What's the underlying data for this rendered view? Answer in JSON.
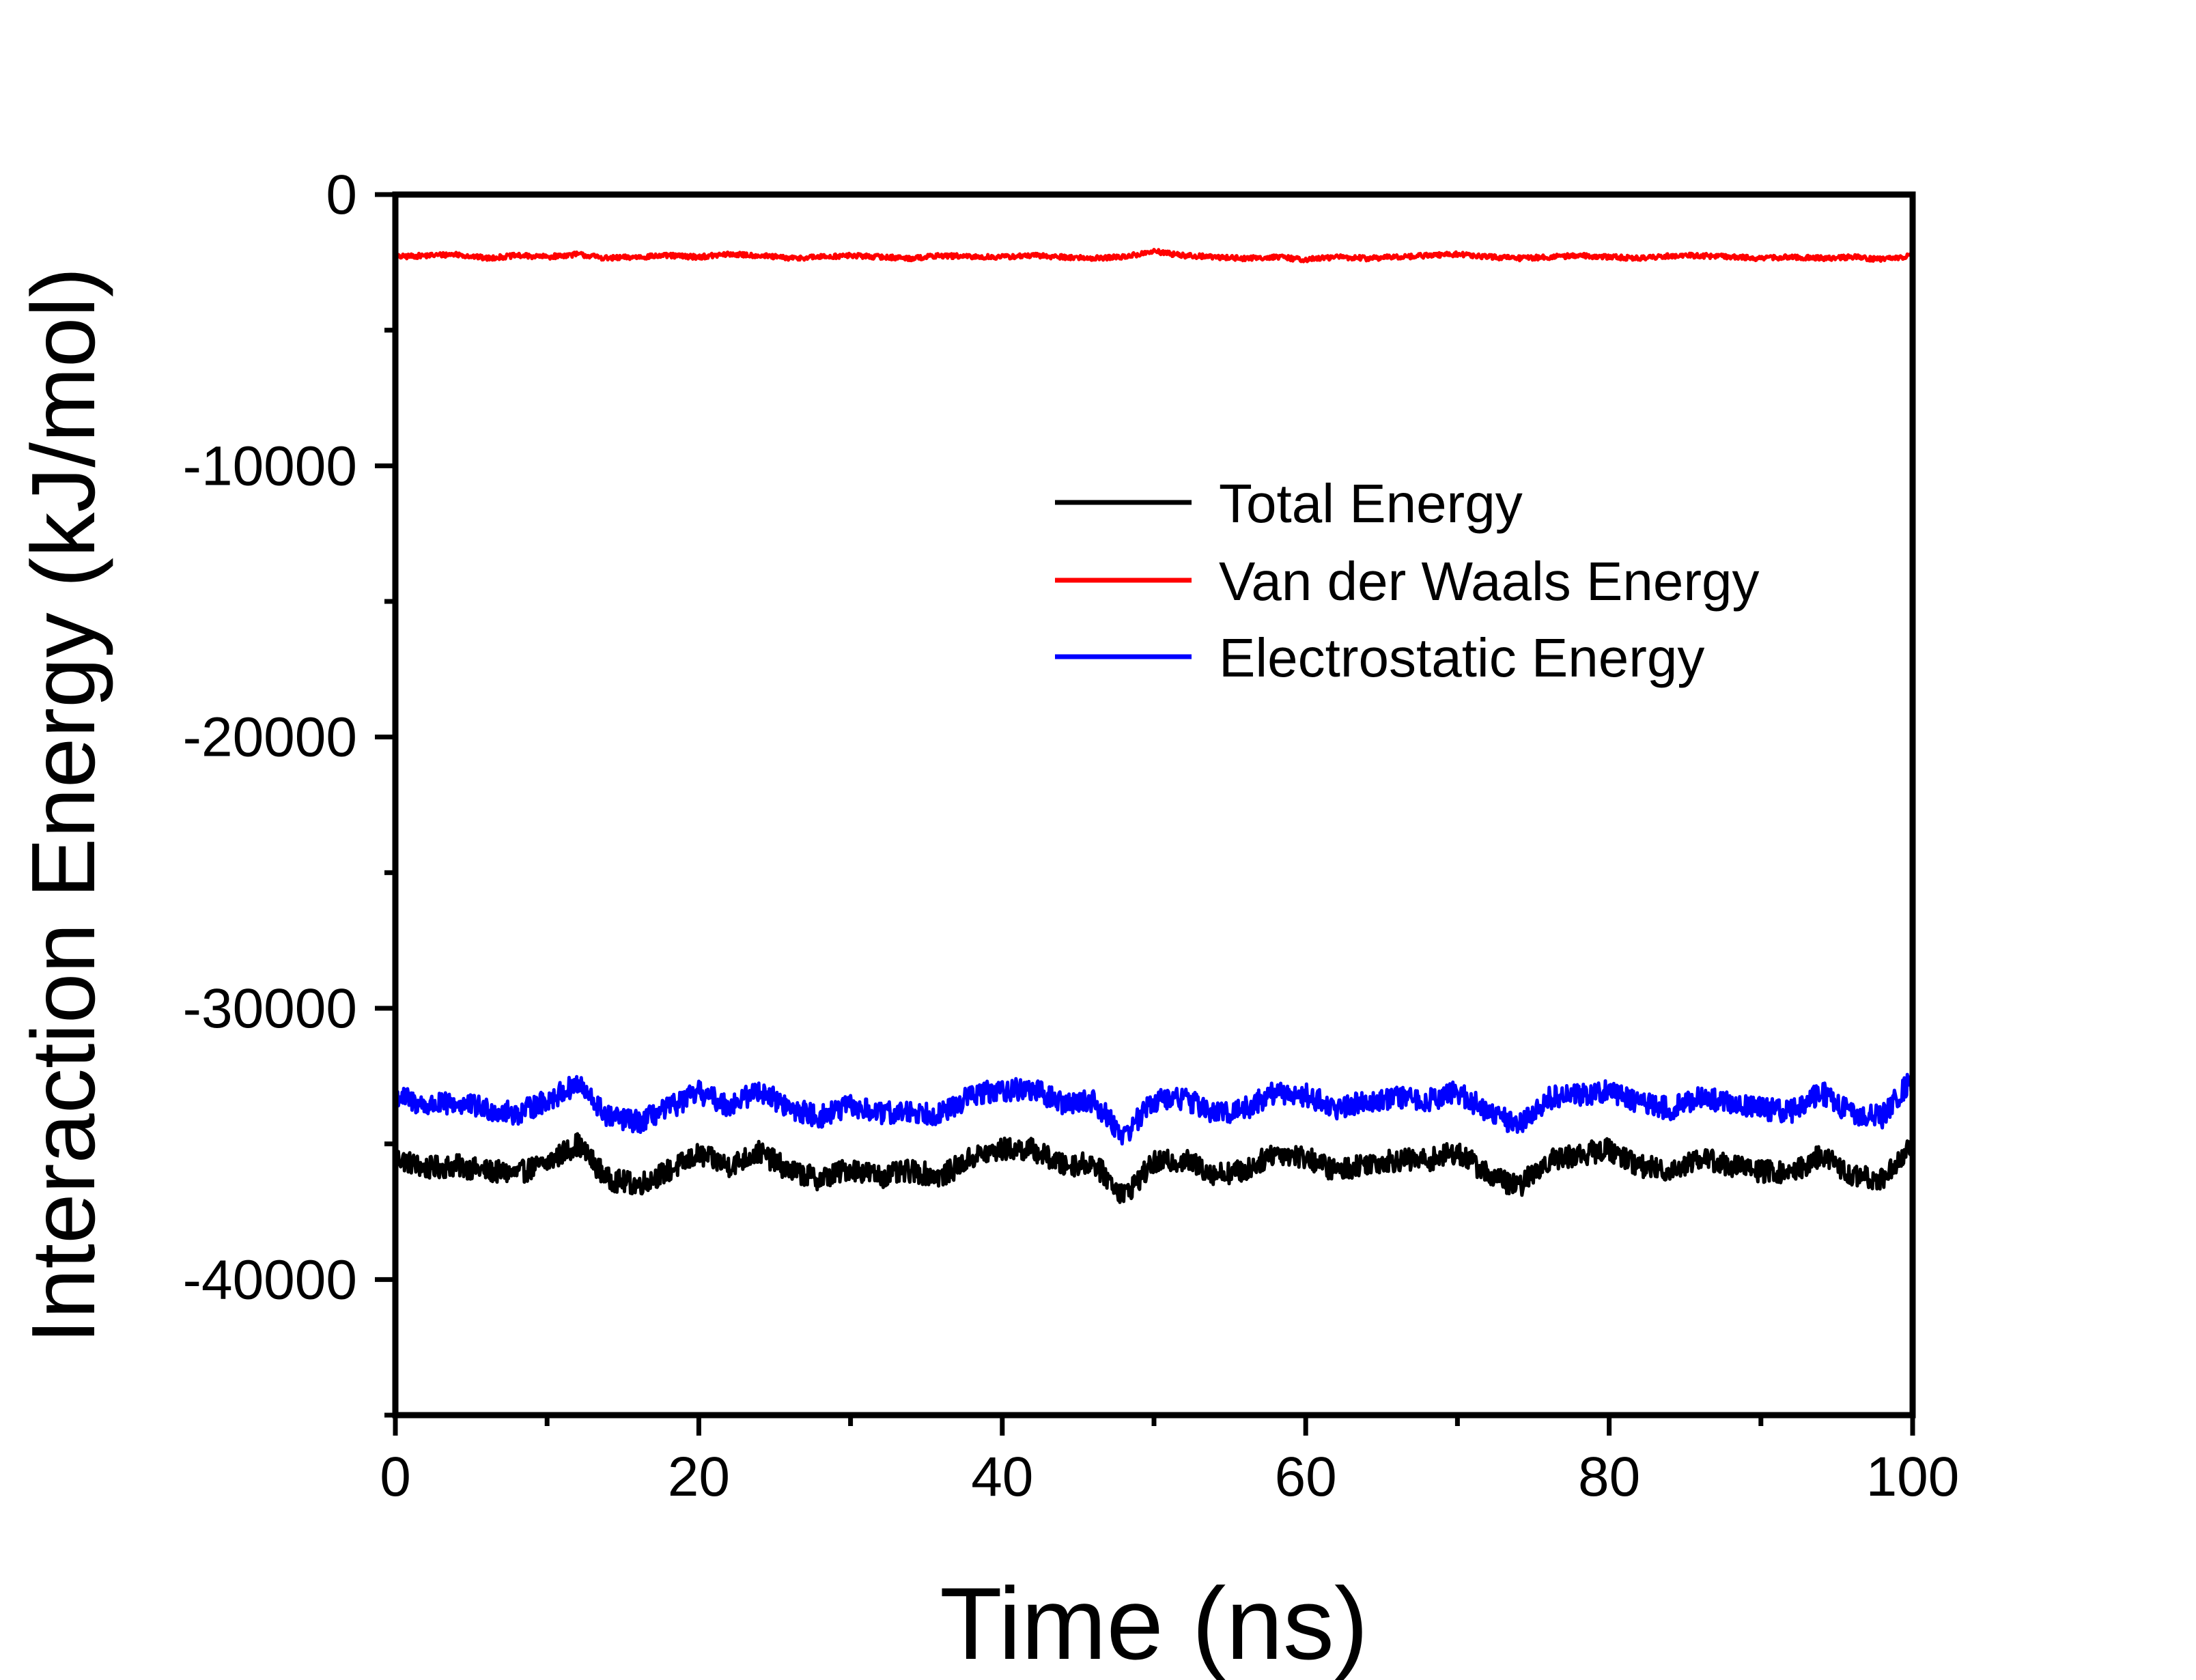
{
  "chart_data": {
    "type": "line",
    "title": "",
    "xlabel": "Time (ns)",
    "ylabel": "Interaction Energy (kJ/mol)",
    "xlim": [
      0,
      100
    ],
    "ylim": [
      -45000,
      0
    ],
    "xticks": [
      0,
      20,
      40,
      60,
      80,
      100
    ],
    "xtick_labels": [
      "0",
      "20",
      "40",
      "60",
      "80",
      "100"
    ],
    "xminor_step": 10,
    "yticks": [
      0,
      -10000,
      -20000,
      -30000,
      -40000
    ],
    "ytick_labels": [
      "0",
      "-10000",
      "-20000",
      "-30000",
      "-40000"
    ],
    "yminor_step": 5000,
    "grid": false,
    "legend_position": "upper-right",
    "series": [
      {
        "name": "Total Energy",
        "color": "#000000",
        "x": [
          0,
          2,
          4,
          6,
          8,
          10,
          12,
          14,
          16,
          18,
          20,
          22,
          24,
          26,
          28,
          30,
          32,
          34,
          36,
          38,
          40,
          42,
          44,
          46,
          48,
          50,
          52,
          54,
          56,
          58,
          60,
          62,
          64,
          66,
          68,
          70,
          72,
          74,
          76,
          78,
          80,
          82,
          84,
          86,
          88,
          90,
          92,
          94,
          96,
          98,
          100
        ],
        "values": [
          -35500,
          -35900,
          -35800,
          -36000,
          -36100,
          -35700,
          -35000,
          -36300,
          -36500,
          -36000,
          -35400,
          -35800,
          -35300,
          -36000,
          -36300,
          -35900,
          -36200,
          -36000,
          -36200,
          -35500,
          -35200,
          -35200,
          -35800,
          -35700,
          -36900,
          -35700,
          -35600,
          -36100,
          -36000,
          -35300,
          -35500,
          -36000,
          -35700,
          -35600,
          -35600,
          -35300,
          -36100,
          -36600,
          -35600,
          -35400,
          -35200,
          -35800,
          -36000,
          -35500,
          -35800,
          -36000,
          -36100,
          -35400,
          -36200,
          -36300,
          -35000
        ]
      },
      {
        "name": "Van der Waals Energy",
        "color": "#ff0000",
        "x": [
          0,
          2,
          4,
          6,
          8,
          10,
          12,
          14,
          16,
          18,
          20,
          22,
          24,
          26,
          28,
          30,
          32,
          34,
          36,
          38,
          40,
          42,
          44,
          46,
          48,
          50,
          52,
          54,
          56,
          58,
          60,
          62,
          64,
          66,
          68,
          70,
          72,
          74,
          76,
          78,
          80,
          82,
          84,
          86,
          88,
          90,
          92,
          94,
          96,
          98,
          100
        ],
        "values": [
          -2300,
          -2250,
          -2200,
          -2350,
          -2250,
          -2300,
          -2200,
          -2350,
          -2300,
          -2250,
          -2300,
          -2200,
          -2250,
          -2350,
          -2300,
          -2250,
          -2300,
          -2350,
          -2250,
          -2300,
          -2300,
          -2250,
          -2300,
          -2350,
          -2300,
          -2100,
          -2250,
          -2300,
          -2350,
          -2300,
          -2400,
          -2300,
          -2350,
          -2300,
          -2250,
          -2200,
          -2300,
          -2350,
          -2300,
          -2250,
          -2300,
          -2350,
          -2250,
          -2250,
          -2300,
          -2350,
          -2300,
          -2350,
          -2300,
          -2400,
          -2250
        ]
      },
      {
        "name": "Electrostatic Energy",
        "color": "#0000ff",
        "x": [
          0,
          2,
          4,
          6,
          8,
          10,
          12,
          14,
          16,
          18,
          20,
          22,
          24,
          26,
          28,
          30,
          32,
          34,
          36,
          38,
          40,
          42,
          44,
          46,
          48,
          50,
          52,
          54,
          56,
          58,
          60,
          62,
          64,
          66,
          68,
          70,
          72,
          74,
          76,
          78,
          80,
          82,
          84,
          86,
          88,
          90,
          92,
          94,
          96,
          98,
          100
        ],
        "values": [
          -33200,
          -33600,
          -33500,
          -33700,
          -33900,
          -33400,
          -32800,
          -34000,
          -34200,
          -33700,
          -33100,
          -33600,
          -33000,
          -33700,
          -34000,
          -33600,
          -33900,
          -33800,
          -33900,
          -33200,
          -33000,
          -33000,
          -33500,
          -33400,
          -34700,
          -33400,
          -33300,
          -33900,
          -33700,
          -33100,
          -33200,
          -33700,
          -33400,
          -33300,
          -33400,
          -33100,
          -33800,
          -34300,
          -33300,
          -33200,
          -33000,
          -33500,
          -33700,
          -33300,
          -33500,
          -33700,
          -33800,
          -33100,
          -33900,
          -34000,
          -32600
        ]
      }
    ]
  }
}
